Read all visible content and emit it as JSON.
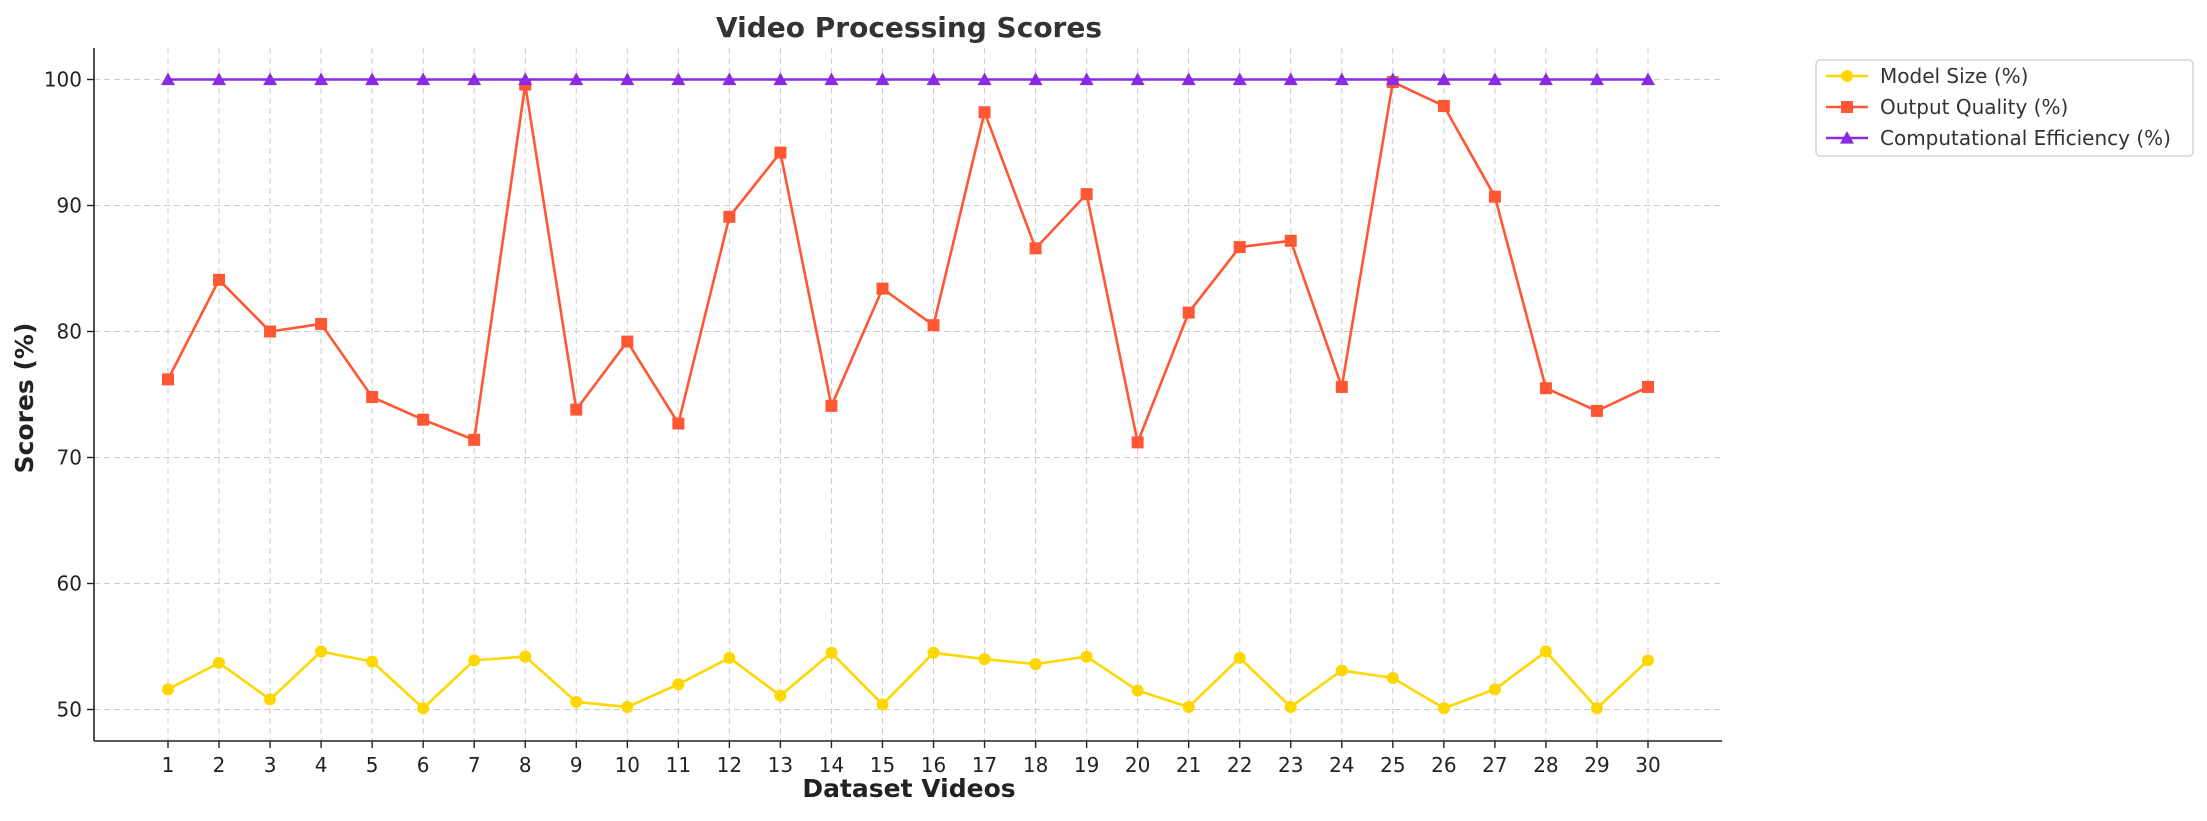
{
  "chart_data": {
    "type": "line",
    "title": "Video Processing Scores",
    "xlabel": "Dataset Videos",
    "ylabel": "Scores (%)",
    "x": [
      1,
      2,
      3,
      4,
      5,
      6,
      7,
      8,
      9,
      10,
      11,
      12,
      13,
      14,
      15,
      16,
      17,
      18,
      19,
      20,
      21,
      22,
      23,
      24,
      25,
      26,
      27,
      28,
      29,
      30
    ],
    "xlim": [
      -0.45,
      31.45
    ],
    "ylim": [
      47.5,
      102.5
    ],
    "yticks": [
      50,
      60,
      70,
      80,
      90,
      100
    ],
    "grid": true,
    "legend_position": "outside-top-right",
    "series": [
      {
        "name": "Model Size (%)",
        "color": "#FFD700",
        "marker": "circle",
        "values": [
          51.6,
          53.7,
          50.8,
          54.6,
          53.8,
          50.1,
          53.9,
          54.2,
          50.6,
          50.2,
          52.0,
          54.1,
          51.1,
          54.5,
          50.4,
          54.5,
          54.0,
          53.6,
          54.2,
          51.5,
          50.2,
          54.1,
          50.2,
          53.1,
          52.5,
          50.1,
          51.6,
          54.6,
          50.1,
          53.9
        ]
      },
      {
        "name": "Output Quality (%)",
        "color": "#FF5733",
        "marker": "square",
        "values": [
          76.2,
          84.1,
          80.0,
          80.6,
          74.8,
          73.0,
          71.4,
          99.6,
          73.8,
          79.2,
          72.7,
          89.1,
          94.2,
          74.1,
          83.4,
          80.5,
          97.4,
          86.6,
          90.9,
          71.2,
          81.5,
          86.7,
          87.2,
          75.6,
          99.8,
          97.9,
          90.7,
          75.5,
          73.7,
          75.6
        ]
      },
      {
        "name": "Computational Efficiency (%)",
        "color": "#8A2BE2",
        "marker": "triangle",
        "values": [
          100,
          100,
          100,
          100,
          100,
          100,
          100,
          100,
          100,
          100,
          100,
          100,
          100,
          100,
          100,
          100,
          100,
          100,
          100,
          100,
          100,
          100,
          100,
          100,
          100,
          100,
          100,
          100,
          100,
          100
        ]
      }
    ]
  }
}
